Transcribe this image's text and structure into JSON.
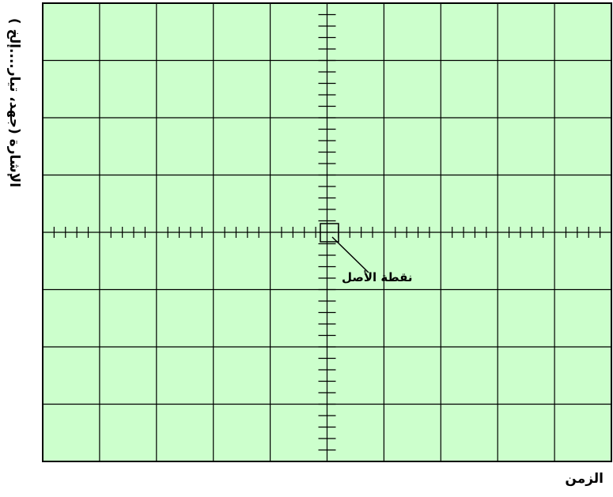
{
  "labels": {
    "y_axis": "الإشارة (جهد، تيار....إلخ )",
    "x_axis": "الزمن",
    "origin": "نقطة الأصل"
  },
  "colors": {
    "screen": "#ccffcc",
    "grid": "#000000"
  },
  "grid": {
    "columns": 10,
    "rows": 8,
    "minor_ticks_per_division": 5
  }
}
